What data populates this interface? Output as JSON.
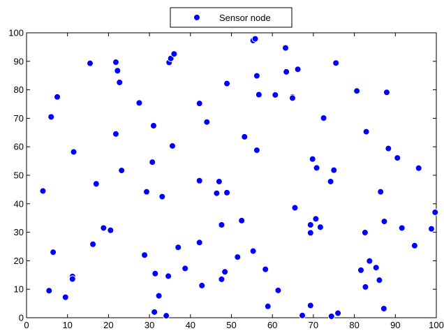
{
  "chart_data": {
    "type": "scatter",
    "title": "",
    "xlabel": "",
    "ylabel": "",
    "xlim": [
      0,
      100
    ],
    "ylim": [
      0,
      100
    ],
    "xticks": [
      0,
      10,
      20,
      30,
      40,
      50,
      60,
      70,
      80,
      90,
      100
    ],
    "yticks": [
      0,
      10,
      20,
      30,
      40,
      50,
      60,
      70,
      80,
      90,
      100
    ],
    "grid": false,
    "legend": {
      "placement": "top-center",
      "entries": [
        "Sensor node"
      ]
    },
    "series": [
      {
        "name": "Sensor node",
        "color": "#0000ff",
        "marker": "circle",
        "points": [
          [
            4,
            44.5
          ],
          [
            5.5,
            9.5
          ],
          [
            6,
            70.5
          ],
          [
            6.5,
            23
          ],
          [
            7.5,
            77.5
          ],
          [
            9.5,
            7.2
          ],
          [
            11.2,
            14.5
          ],
          [
            11.2,
            13.6
          ],
          [
            11.5,
            58.2
          ],
          [
            15.5,
            89.3
          ],
          [
            16.2,
            25.8
          ],
          [
            17,
            47
          ],
          [
            18.8,
            31.5
          ],
          [
            20.5,
            30.7
          ],
          [
            21.8,
            89.7
          ],
          [
            21.8,
            64.5
          ],
          [
            22.2,
            86.7
          ],
          [
            22.7,
            82.6
          ],
          [
            23.2,
            51.7
          ],
          [
            27.5,
            75.4
          ],
          [
            28.8,
            22
          ],
          [
            29.3,
            44.2
          ],
          [
            30.7,
            54.6
          ],
          [
            31,
            67.4
          ],
          [
            31.2,
            2
          ],
          [
            31.4,
            15.5
          ],
          [
            32.3,
            7.7
          ],
          [
            33.1,
            42.5
          ],
          [
            34.1,
            0.7
          ],
          [
            34.6,
            14.6
          ],
          [
            34.8,
            89.6
          ],
          [
            35.2,
            91
          ],
          [
            35.6,
            60.3
          ],
          [
            36,
            92.6
          ],
          [
            37,
            24.7
          ],
          [
            38.7,
            17.3
          ],
          [
            42.2,
            75.2
          ],
          [
            42.2,
            48.1
          ],
          [
            42.2,
            26.4
          ],
          [
            42.8,
            11.3
          ],
          [
            44,
            68.7
          ],
          [
            46.4,
            43.7
          ],
          [
            47,
            47.8
          ],
          [
            47.6,
            32.6
          ],
          [
            47.6,
            13.5
          ],
          [
            48.4,
            16.1
          ],
          [
            48.9,
            43.9
          ],
          [
            48.9,
            82.2
          ],
          [
            51.5,
            21.3
          ],
          [
            52.5,
            34.1
          ],
          [
            53.2,
            63.5
          ],
          [
            55.3,
            23.4
          ],
          [
            55.3,
            97.3
          ],
          [
            55.8,
            97.9
          ],
          [
            56.2,
            58.8
          ],
          [
            56.2,
            84.9
          ],
          [
            56.7,
            78.3
          ],
          [
            58.3,
            17
          ],
          [
            58.9,
            4
          ],
          [
            60.7,
            78.2
          ],
          [
            61.4,
            9.6
          ],
          [
            63.2,
            94.7
          ],
          [
            63.4,
            86.3
          ],
          [
            64.9,
            77.5
          ],
          [
            64.9,
            77.1
          ],
          [
            65.5,
            38.6
          ],
          [
            66.2,
            87.2
          ],
          [
            67.3,
            0.8
          ],
          [
            69.3,
            4.3
          ],
          [
            69.3,
            32.6
          ],
          [
            69.3,
            29.8
          ],
          [
            69.8,
            55.7
          ],
          [
            70.6,
            34.7
          ],
          [
            70.8,
            52.6
          ],
          [
            71.7,
            31.8
          ],
          [
            72.5,
            70.1
          ],
          [
            74.2,
            47.8
          ],
          [
            74.4,
            0.5
          ],
          [
            75,
            51.8
          ],
          [
            75.5,
            89.4
          ],
          [
            76,
            1.6
          ],
          [
            80.6,
            79.6
          ],
          [
            81.6,
            16.7
          ],
          [
            82.6,
            29.9
          ],
          [
            82.7,
            10.8
          ],
          [
            82.9,
            65.3
          ],
          [
            83.7,
            19.9
          ],
          [
            85.3,
            17.6
          ],
          [
            86.1,
            13.2
          ],
          [
            86.4,
            44.2
          ],
          [
            87.2,
            3.2
          ],
          [
            87.3,
            33.8
          ],
          [
            87.9,
            79.1
          ],
          [
            88.3,
            59.4
          ],
          [
            90.5,
            56.1
          ],
          [
            91.6,
            31.5
          ],
          [
            94.7,
            25.3
          ],
          [
            95.7,
            52.5
          ],
          [
            98.8,
            31.2
          ],
          [
            99.7,
            37
          ]
        ]
      }
    ]
  }
}
